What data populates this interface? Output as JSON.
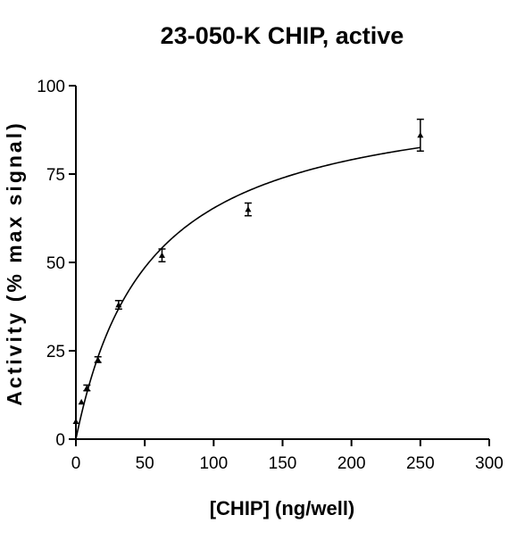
{
  "chart_data": {
    "type": "scatter",
    "title": "23-050-K CHIP, active",
    "xlabel": "[CHIP] (ng/well)",
    "ylabel": "Activity (% max signal)",
    "xlim": [
      0,
      300
    ],
    "ylim": [
      0,
      100
    ],
    "x_ticks": [
      "0",
      "50",
      "100",
      "150",
      "200",
      "250",
      "300"
    ],
    "y_ticks": [
      "0",
      "25",
      "50",
      "75",
      "100"
    ],
    "grid": false,
    "legend": "none",
    "marker": "triangle",
    "color": "#000000",
    "series": [
      {
        "points": [
          {
            "x": 0,
            "y": 5,
            "err": 0
          },
          {
            "x": 4,
            "y": 10.5,
            "err": 0
          },
          {
            "x": 8,
            "y": 14.5,
            "err": 0.8
          },
          {
            "x": 16,
            "y": 22.5,
            "err": 0.8
          },
          {
            "x": 31,
            "y": 38,
            "err": 1.2
          },
          {
            "x": 62.5,
            "y": 52,
            "err": 1.8
          },
          {
            "x": 125,
            "y": 65,
            "err": 1.8
          },
          {
            "x": 250,
            "y": 86,
            "err": 4.5
          }
        ]
      }
    ],
    "fit": {
      "model": "hyperbola",
      "vmax": 100,
      "km": 53,
      "x_range": [
        0,
        250
      ]
    }
  }
}
